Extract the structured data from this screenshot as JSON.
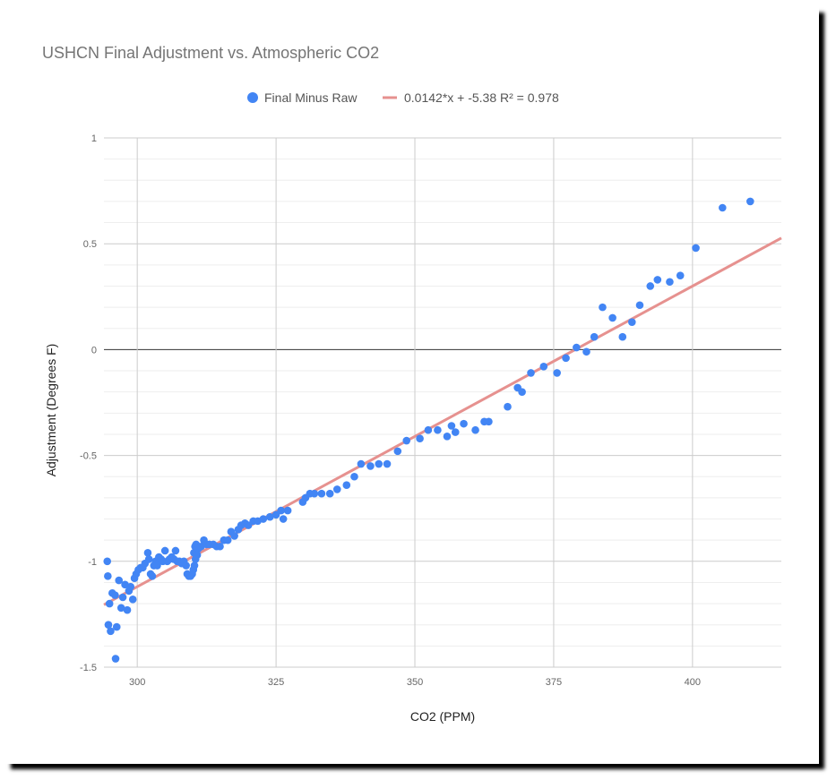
{
  "chart_data": {
    "type": "scatter",
    "title": "USHCN Final Adjustment  vs. Atmospheric CO2",
    "xlabel": "CO2 (PPM)",
    "ylabel": "Adjustment (Degrees F)",
    "xlim": [
      294,
      416
    ],
    "ylim": [
      -1.5,
      1
    ],
    "x_ticks": [
      300,
      325,
      350,
      375,
      400
    ],
    "x_tick_labels": [
      "300",
      "325",
      "350",
      "375",
      "400"
    ],
    "y_ticks": [
      1,
      0.5,
      0,
      -0.5,
      -1,
      -1.5
    ],
    "y_tick_labels": [
      "1",
      "0.5",
      "0",
      "-0.5",
      "-1",
      "-1.5"
    ],
    "grid": true,
    "legend_position": "top",
    "series": [
      {
        "name": "Final Minus Raw",
        "kind": "points",
        "color": "#4285f4",
        "points": [
          [
            294.6,
            -1.0
          ],
          [
            294.7,
            -1.07
          ],
          [
            294.8,
            -1.3
          ],
          [
            295.0,
            -1.2
          ],
          [
            295.2,
            -1.33
          ],
          [
            295.5,
            -1.15
          ],
          [
            296.0,
            -1.16
          ],
          [
            296.3,
            -1.31
          ],
          [
            296.1,
            -1.46
          ],
          [
            296.7,
            -1.09
          ],
          [
            297.1,
            -1.22
          ],
          [
            297.4,
            -1.17
          ],
          [
            297.8,
            -1.11
          ],
          [
            298.2,
            -1.23
          ],
          [
            298.5,
            -1.14
          ],
          [
            298.8,
            -1.12
          ],
          [
            299.2,
            -1.18
          ],
          [
            299.5,
            -1.08
          ],
          [
            299.8,
            -1.06
          ],
          [
            300.2,
            -1.04
          ],
          [
            300.6,
            -1.03
          ],
          [
            301.0,
            -1.03
          ],
          [
            301.4,
            -1.01
          ],
          [
            301.9,
            -0.96
          ],
          [
            302.1,
            -0.99
          ],
          [
            302.4,
            -1.06
          ],
          [
            302.7,
            -1.07
          ],
          [
            303.0,
            -1.02
          ],
          [
            303.3,
            -1.0
          ],
          [
            303.6,
            -1.02
          ],
          [
            303.9,
            -0.98
          ],
          [
            304.3,
            -0.99
          ],
          [
            304.6,
            -1.0
          ],
          [
            305.0,
            -0.95
          ],
          [
            305.4,
            -1.0
          ],
          [
            305.8,
            -0.99
          ],
          [
            306.2,
            -0.98
          ],
          [
            306.6,
            -0.99
          ],
          [
            306.9,
            -0.95
          ],
          [
            307.2,
            -1.0
          ],
          [
            307.6,
            -1.0
          ],
          [
            308.0,
            -1.01
          ],
          [
            308.4,
            -1.0
          ],
          [
            308.8,
            -1.02
          ],
          [
            309.0,
            -1.06
          ],
          [
            309.3,
            -1.07
          ],
          [
            309.6,
            -1.07
          ],
          [
            309.9,
            -1.06
          ],
          [
            310.1,
            -1.04
          ],
          [
            310.3,
            -1.02
          ],
          [
            310.5,
            -0.99
          ],
          [
            310.2,
            -0.96
          ],
          [
            310.4,
            -0.93
          ],
          [
            310.6,
            -0.92
          ],
          [
            310.8,
            -0.97
          ],
          [
            311.0,
            -0.94
          ],
          [
            311.5,
            -0.93
          ],
          [
            312.0,
            -0.9
          ],
          [
            312.5,
            -0.92
          ],
          [
            313.0,
            -0.92
          ],
          [
            313.7,
            -0.92
          ],
          [
            314.3,
            -0.93
          ],
          [
            314.9,
            -0.93
          ],
          [
            315.6,
            -0.9
          ],
          [
            316.3,
            -0.9
          ],
          [
            316.9,
            -0.86
          ],
          [
            317.5,
            -0.88
          ],
          [
            318.2,
            -0.85
          ],
          [
            318.7,
            -0.83
          ],
          [
            319.4,
            -0.82
          ],
          [
            320.0,
            -0.83
          ],
          [
            320.9,
            -0.81
          ],
          [
            321.7,
            -0.81
          ],
          [
            322.7,
            -0.8
          ],
          [
            323.9,
            -0.79
          ],
          [
            325.0,
            -0.78
          ],
          [
            325.9,
            -0.76
          ],
          [
            326.3,
            -0.8
          ],
          [
            327.1,
            -0.76
          ],
          [
            329.8,
            -0.72
          ],
          [
            330.3,
            -0.7
          ],
          [
            331.1,
            -0.68
          ],
          [
            331.9,
            -0.68
          ],
          [
            333.2,
            -0.68
          ],
          [
            334.7,
            -0.68
          ],
          [
            336.0,
            -0.66
          ],
          [
            337.7,
            -0.64
          ],
          [
            339.1,
            -0.6
          ],
          [
            340.3,
            -0.54
          ],
          [
            342.0,
            -0.55
          ],
          [
            343.5,
            -0.54
          ],
          [
            345.0,
            -0.54
          ],
          [
            346.9,
            -0.48
          ],
          [
            348.5,
            -0.43
          ],
          [
            350.9,
            -0.42
          ],
          [
            352.4,
            -0.38
          ],
          [
            354.1,
            -0.38
          ],
          [
            355.8,
            -0.41
          ],
          [
            356.6,
            -0.36
          ],
          [
            357.3,
            -0.39
          ],
          [
            358.8,
            -0.35
          ],
          [
            360.9,
            -0.38
          ],
          [
            362.5,
            -0.34
          ],
          [
            363.3,
            -0.34
          ],
          [
            366.7,
            -0.27
          ],
          [
            368.5,
            -0.18
          ],
          [
            369.3,
            -0.2
          ],
          [
            370.9,
            -0.11
          ],
          [
            373.2,
            -0.08
          ],
          [
            375.6,
            -0.11
          ],
          [
            377.2,
            -0.04
          ],
          [
            379.1,
            0.01
          ],
          [
            380.9,
            -0.01
          ],
          [
            382.3,
            0.06
          ],
          [
            383.8,
            0.2
          ],
          [
            385.6,
            0.15
          ],
          [
            387.4,
            0.06
          ],
          [
            389.1,
            0.13
          ],
          [
            390.5,
            0.21
          ],
          [
            392.4,
            0.3
          ],
          [
            393.7,
            0.33
          ],
          [
            395.9,
            0.32
          ],
          [
            397.8,
            0.35
          ],
          [
            400.6,
            0.48
          ],
          [
            405.4,
            0.67
          ],
          [
            410.4,
            0.7
          ]
        ]
      },
      {
        "name": "0.0142*x + -5.38 R² = 0.978",
        "kind": "trendline",
        "color": "#e6918f",
        "slope": 0.0142,
        "intercept": -5.38
      }
    ]
  }
}
